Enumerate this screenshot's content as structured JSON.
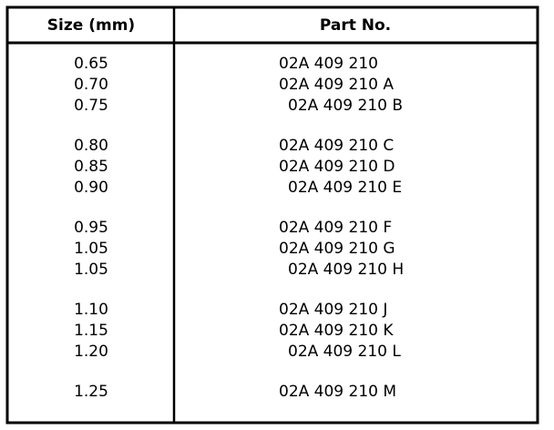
{
  "table": {
    "header": [
      "Size (mm)",
      "Part No."
    ],
    "rows": [
      [
        "0.65",
        "02A 409 210"
      ],
      [
        "0.70",
        "02A 409 210 A"
      ],
      [
        "0.75",
        "02A 409 210 B"
      ],
      [
        "0.80",
        "02A 409 210 C"
      ],
      [
        "0.85",
        "02A 409 210 D"
      ],
      [
        "0.90",
        "02A 409 210 E"
      ],
      [
        "0.95",
        "02A 409 210 F"
      ],
      [
        "1.05",
        "02A 409 210 G"
      ],
      [
        "1.05",
        "02A 409 210 H"
      ],
      [
        "1.10",
        "02A 409 210 J"
      ],
      [
        "1.15",
        "02A 409 210 K"
      ],
      [
        "1.20",
        "02A 409 210 L"
      ],
      [
        "1.25",
        "02A 409 210 M"
      ]
    ]
  }
}
